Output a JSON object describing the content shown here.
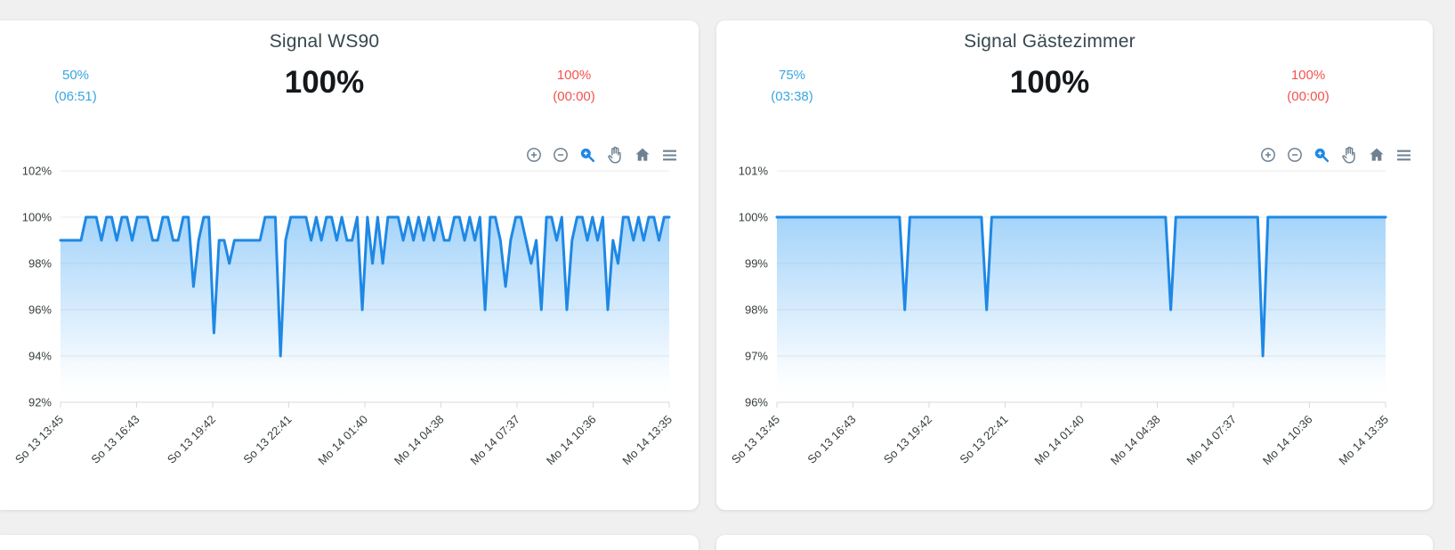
{
  "cards": [
    {
      "title": "Signal WS90",
      "current": "100%",
      "min": {
        "value": "50%",
        "duration": "(06:51)"
      },
      "max": {
        "value": "100%",
        "duration": "(00:00)"
      }
    },
    {
      "title": "Signal Gästezimmer",
      "current": "100%",
      "min": {
        "value": "75%",
        "duration": "(03:38)"
      },
      "max": {
        "value": "100%",
        "duration": "(00:00)"
      }
    }
  ],
  "toolbar_icons": [
    "zoom-in",
    "zoom-out",
    "selection-zoom",
    "pan",
    "home",
    "menu"
  ],
  "colors": {
    "page_background": "#f0f0f1",
    "card_background": "#ffffff",
    "title_text": "#37474f",
    "main_value_text": "#14181c",
    "min_stat_blue": "#39a5e0",
    "max_stat_red": "#f4524e",
    "line_blue": "#1e88e5",
    "area_fill_blue": "#64b5f6",
    "icon_gray": "#6e8192",
    "selection_zoom_active": "#1e88e5",
    "grid_line": "#e9e9e9",
    "axis_label": "#373d3f"
  },
  "chart_data": [
    {
      "type": "area",
      "title": "Signal WS90",
      "x_labels": [
        "So 13 13:45",
        "So 13 16:43",
        "So 13 19:42",
        "So 13 22:41",
        "Mo 14 01:40",
        "Mo 14 04:38",
        "Mo 14 07:37",
        "Mo 14 10:36",
        "Mo 14 13:35"
      ],
      "y_tick_labels": [
        "102%",
        "100%",
        "98%",
        "96%",
        "94%",
        "92%"
      ],
      "ylim": [
        92,
        102
      ],
      "grid": true,
      "legend": "none",
      "line_color": "#1e88e5",
      "series": [
        {
          "name": "Signal WS90",
          "values": [
            99,
            99,
            99,
            99,
            99,
            100,
            100,
            100,
            99,
            100,
            100,
            99,
            100,
            100,
            99,
            100,
            100,
            100,
            99,
            99,
            100,
            100,
            99,
            99,
            100,
            100,
            97,
            99,
            100,
            100,
            95,
            99,
            99,
            98,
            99,
            99,
            99,
            99,
            99,
            99,
            100,
            100,
            100,
            94,
            99,
            100,
            100,
            100,
            100,
            99,
            100,
            99,
            100,
            100,
            99,
            100,
            99,
            99,
            100,
            96,
            100,
            98,
            100,
            98,
            100,
            100,
            100,
            99,
            100,
            99,
            100,
            99,
            100,
            99,
            100,
            99,
            99,
            100,
            100,
            99,
            100,
            99,
            100,
            96,
            100,
            100,
            99,
            97,
            99,
            100,
            100,
            99,
            98,
            99,
            96,
            100,
            100,
            99,
            100,
            96,
            99,
            100,
            100,
            99,
            100,
            99,
            100,
            96,
            99,
            98,
            100,
            100,
            99,
            100,
            99,
            100,
            100,
            99,
            100,
            100
          ]
        }
      ]
    },
    {
      "type": "area",
      "title": "Signal Gästezimmer",
      "x_labels": [
        "So 13 13:45",
        "So 13 16:43",
        "So 13 19:42",
        "So 13 22:41",
        "Mo 14 01:40",
        "Mo 14 04:38",
        "Mo 14 07:37",
        "Mo 14 10:36",
        "Mo 14 13:35"
      ],
      "y_tick_labels": [
        "101%",
        "100%",
        "99%",
        "98%",
        "97%",
        "96%"
      ],
      "ylim": [
        96,
        101
      ],
      "grid": true,
      "legend": "none",
      "line_color": "#1e88e5",
      "series": [
        {
          "name": "Signal Gästezimmer",
          "values": [
            100,
            100,
            100,
            100,
            100,
            100,
            100,
            100,
            100,
            100,
            100,
            100,
            100,
            100,
            100,
            100,
            100,
            100,
            100,
            100,
            100,
            100,
            100,
            100,
            100,
            98,
            100,
            100,
            100,
            100,
            100,
            100,
            100,
            100,
            100,
            100,
            100,
            100,
            100,
            100,
            100,
            98,
            100,
            100,
            100,
            100,
            100,
            100,
            100,
            100,
            100,
            100,
            100,
            100,
            100,
            100,
            100,
            100,
            100,
            100,
            100,
            100,
            100,
            100,
            100,
            100,
            100,
            100,
            100,
            100,
            100,
            100,
            100,
            100,
            100,
            100,
            100,
            98,
            100,
            100,
            100,
            100,
            100,
            100,
            100,
            100,
            100,
            100,
            100,
            100,
            100,
            100,
            100,
            100,
            100,
            97,
            100,
            100,
            100,
            100,
            100,
            100,
            100,
            100,
            100,
            100,
            100,
            100,
            100,
            100,
            100,
            100,
            100,
            100,
            100,
            100,
            100,
            100,
            100,
            100
          ]
        }
      ]
    }
  ]
}
